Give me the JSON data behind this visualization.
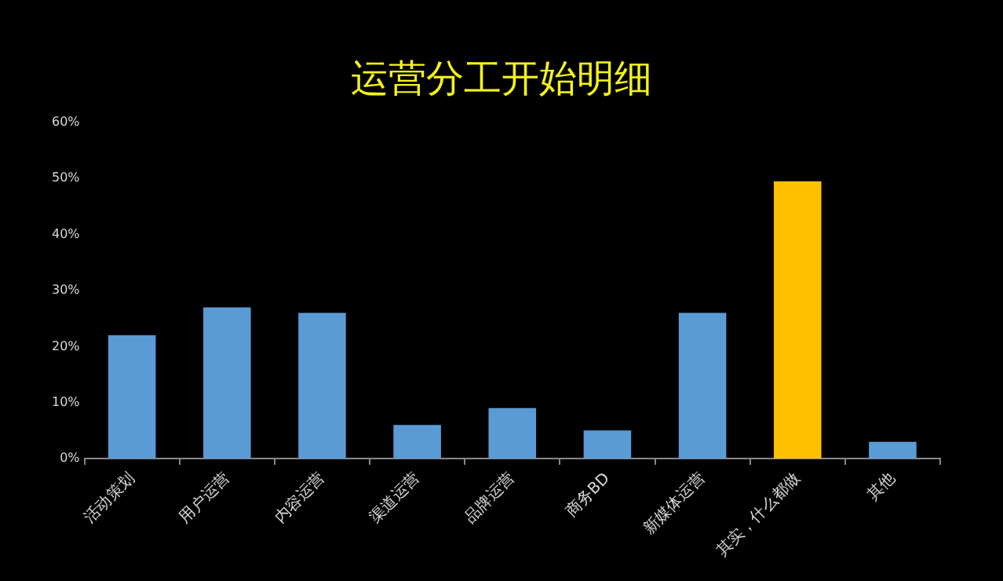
{
  "chart_data": {
    "type": "bar",
    "title": "运营分工开始明细",
    "categories": [
      "活动策划",
      "用户运营",
      "内容运营",
      "渠道运营",
      "品牌运营",
      "商务BD",
      "新媒体运营",
      "其实，什么都做",
      "其他"
    ],
    "values": [
      22,
      27,
      26,
      6,
      9,
      5,
      26,
      49.5,
      3
    ],
    "colors": [
      "#5b9bd5",
      "#5b9bd5",
      "#5b9bd5",
      "#5b9bd5",
      "#5b9bd5",
      "#5b9bd5",
      "#5b9bd5",
      "#ffc000",
      "#5b9bd5"
    ],
    "ylim": [
      0,
      60
    ],
    "yticks": [
      {
        "value": 0,
        "label": "0%"
      },
      {
        "value": 10,
        "label": "10%"
      },
      {
        "value": 20,
        "label": "20%"
      },
      {
        "value": 30,
        "label": "30%"
      },
      {
        "value": 40,
        "label": "40%"
      },
      {
        "value": 50,
        "label": "50%"
      },
      {
        "value": 60,
        "label": "60%"
      }
    ],
    "grid": false,
    "legend": false
  }
}
